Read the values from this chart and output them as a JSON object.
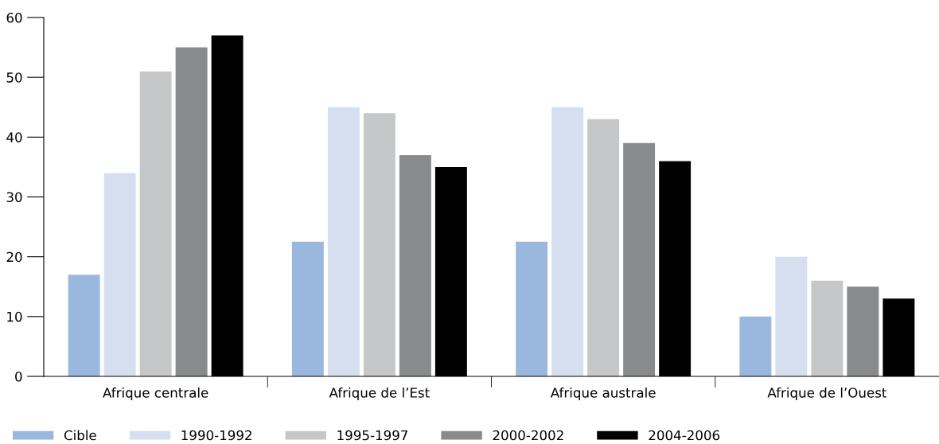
{
  "chart_data": {
    "type": "bar",
    "categories": [
      "Afrique centrale",
      "Afrique de l’Est",
      "Afrique australe",
      "Afrique de l’Ouest"
    ],
    "series": [
      {
        "name": "Cible",
        "color": "#9ab8dd",
        "values": [
          17,
          22.5,
          22.5,
          10
        ]
      },
      {
        "name": "1990-1992",
        "color": "#d6dff0",
        "values": [
          34,
          45,
          45,
          20
        ]
      },
      {
        "name": "1995-1997",
        "color": "#c6c7c9",
        "values": [
          51,
          44,
          43,
          16
        ]
      },
      {
        "name": "2000-2002",
        "color": "#888a8c",
        "values": [
          55,
          37,
          39,
          15
        ]
      },
      {
        "name": "2004-2006",
        "color": "#000000",
        "values": [
          57,
          35,
          36,
          13
        ]
      }
    ],
    "ylim": [
      0,
      60
    ],
    "yticks": [
      0,
      10,
      20,
      30,
      40,
      50,
      60
    ],
    "grid": false,
    "legend": "bottom"
  }
}
